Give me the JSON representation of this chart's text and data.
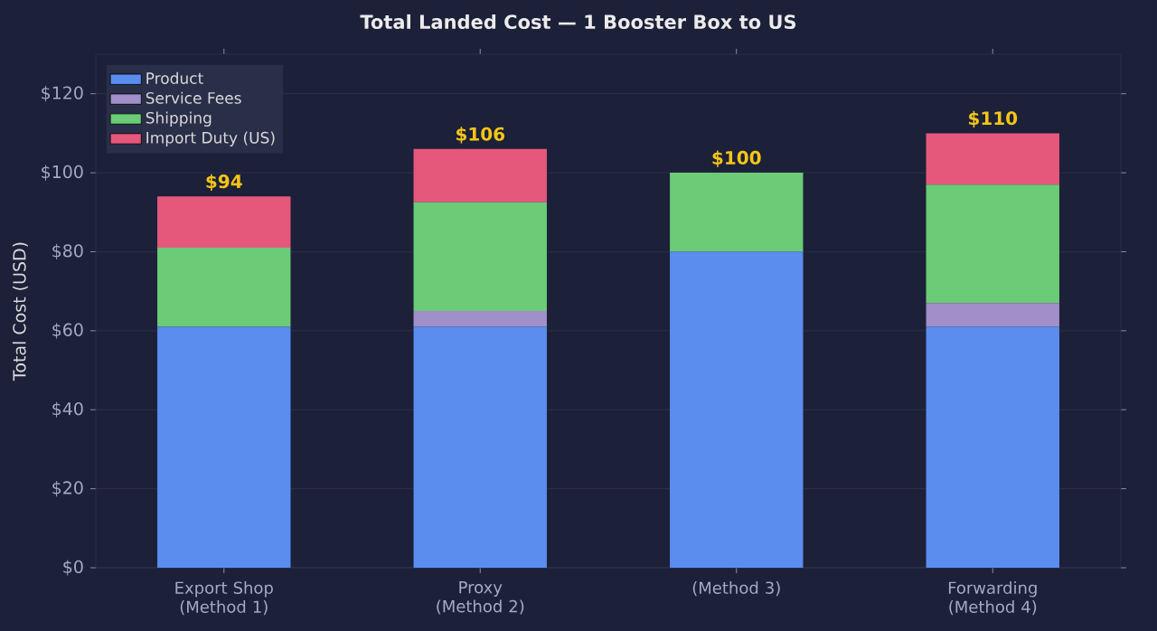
{
  "chart_data": {
    "type": "bar",
    "stacked": true,
    "title": "Total Landed Cost — 1 Booster Box to US",
    "ylabel": "Total Cost (USD)",
    "categories": [
      "Export Shop (Method 1)",
      "Proxy (Method 2)",
      "(Method 3)",
      "Forwarding (Method 4)"
    ],
    "series": [
      {
        "name": "Product",
        "color": "#5b8def",
        "values": [
          61,
          61,
          80,
          61
        ]
      },
      {
        "name": "Service Fees",
        "color": "#a08fc8",
        "values": [
          0,
          4,
          0,
          6
        ]
      },
      {
        "name": "Shipping",
        "color": "#6bcb77",
        "values": [
          20,
          27.5,
          20,
          30
        ]
      },
      {
        "name": "Import Duty (US)",
        "color": "#e5587c",
        "values": [
          13,
          13.5,
          0,
          13
        ]
      }
    ],
    "totals": [
      "$94",
      "$106",
      "$100",
      "$110"
    ],
    "ylim": [
      0,
      130
    ],
    "yticks": [
      {
        "value": 0,
        "label": "$0"
      },
      {
        "value": 20,
        "label": "$20"
      },
      {
        "value": 40,
        "label": "$40"
      },
      {
        "value": 60,
        "label": "$60"
      },
      {
        "value": 80,
        "label": "$80"
      },
      {
        "value": 100,
        "label": "$100"
      },
      {
        "value": 120,
        "label": "$120"
      }
    ],
    "grid": "y",
    "legend": "top left"
  }
}
